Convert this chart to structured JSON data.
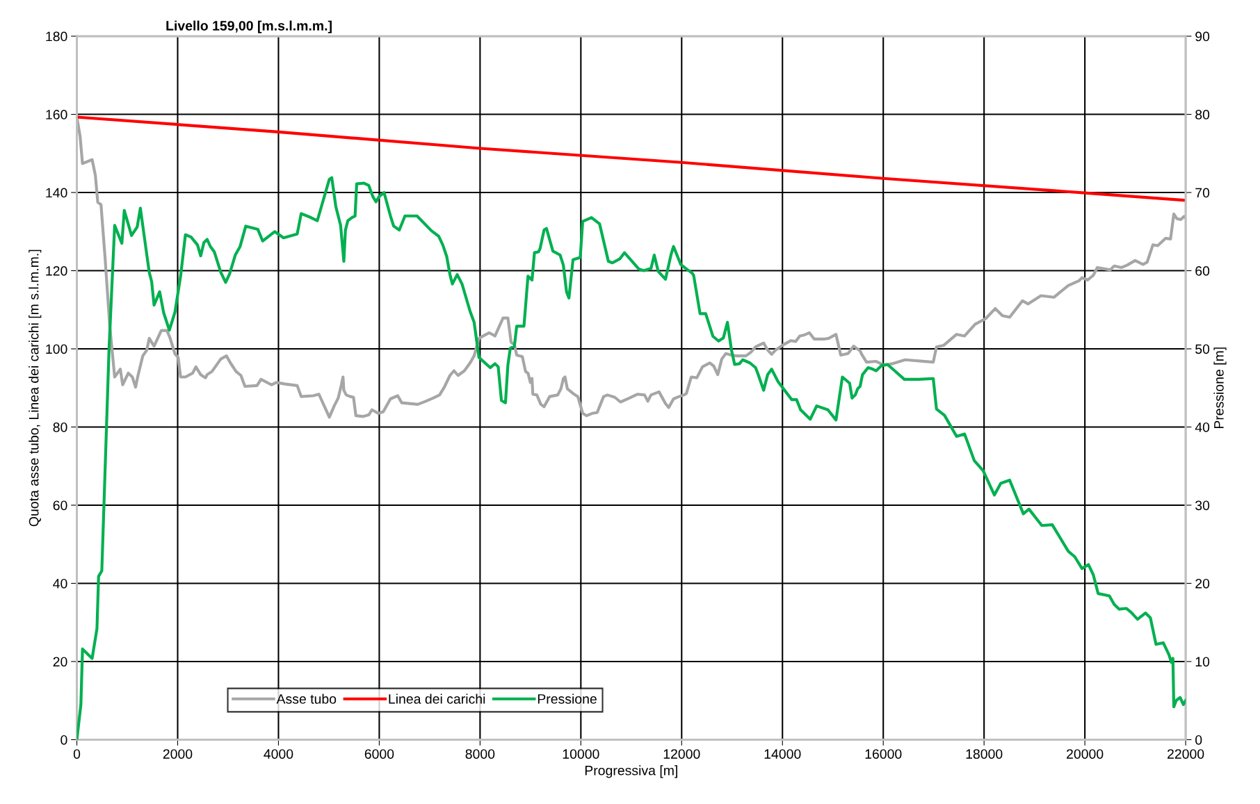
{
  "chart_data": {
    "type": "line",
    "title": "Livello 159,00 [m.s.l.m.m.]",
    "xlabel": "Progressiva [m]",
    "ylabel": "Quota asse tubo, Linea dei carichi [m s.l.m.m.]",
    "y2label": "Pressione [m]",
    "xlim": [
      0,
      22000
    ],
    "xticks": [
      0,
      2000,
      4000,
      6000,
      8000,
      10000,
      12000,
      14000,
      16000,
      18000,
      20000,
      22000
    ],
    "ylim": [
      0,
      180
    ],
    "yticks": [
      0,
      20,
      40,
      60,
      80,
      100,
      120,
      140,
      160,
      180
    ],
    "y2lim": [
      0,
      90
    ],
    "y2ticks": [
      0,
      10,
      20,
      30,
      40,
      50,
      60,
      70,
      80,
      90
    ],
    "grid": true,
    "legend": "bottom left",
    "line_style": "solid",
    "marker": "none",
    "series": [
      {
        "name": "Asse tubo",
        "color": "#a6a6a6",
        "x": [
          0,
          64,
          112,
          303,
          367,
          415,
          479,
          558,
          654,
          750,
          862,
          909,
          1021,
          1101,
          1165,
          1213,
          1308,
          1388,
          1436,
          1532,
          1675,
          1787,
          1851,
          1947,
          2010,
          2058,
          2154,
          2298,
          2361,
          2457,
          2553,
          2585,
          2680,
          2856,
          2968,
          3047,
          3159,
          3255,
          3335,
          3574,
          3654,
          3861,
          3957,
          4132,
          4372,
          4451,
          4691,
          4802,
          5010,
          5106,
          5185,
          5249,
          5281,
          5297,
          5345,
          5425,
          5489,
          5536,
          5680,
          5792,
          5855,
          5983,
          6079,
          6222,
          6366,
          6446,
          6765,
          6924,
          7068,
          7196,
          7291,
          7403,
          7483,
          7563,
          7690,
          7802,
          7882,
          7978,
          8121,
          8185,
          8297,
          8456,
          8552,
          8616,
          8680,
          8727,
          8839,
          8903,
          8951,
          8999,
          9031,
          9047,
          9127,
          9206,
          9270,
          9382,
          9541,
          9605,
          9653,
          9685,
          9732,
          9844,
          9940,
          10036,
          10115,
          10227,
          10323,
          10451,
          10530,
          10674,
          10786,
          10961,
          11121,
          11264,
          11328,
          11392,
          11551,
          11679,
          11743,
          11839,
          11950,
          12046,
          12094,
          12190,
          12301,
          12413,
          12557,
          12636,
          12716,
          12796,
          12876,
          12987,
          13083,
          13274,
          13370,
          13466,
          13626,
          13706,
          13785,
          13865,
          14025,
          14168,
          14264,
          14344,
          14423,
          14535,
          14631,
          14822,
          14918,
          15062,
          15157,
          15301,
          15413,
          15540,
          15572,
          15668,
          15859,
          16019,
          16178,
          16434,
          16992,
          17056,
          17200,
          17455,
          17614,
          17822,
          18029,
          18221,
          18364,
          18508,
          18763,
          18875,
          19130,
          19385,
          19672,
          19880,
          19943,
          20055,
          20167,
          20247,
          20502,
          20582,
          20726,
          20838,
          20997,
          21157,
          21237,
          21350,
          21446,
          21605,
          21700,
          21765,
          21826,
          21906,
          21970,
          22000
        ],
        "values": [
          159.3,
          154.4,
          147.4,
          148.4,
          144.4,
          137.5,
          136.9,
          123.6,
          105.7,
          92.8,
          94.8,
          90.8,
          93.8,
          92.8,
          90.2,
          93.2,
          98.2,
          99.7,
          102.7,
          100.7,
          104.7,
          104.7,
          102.7,
          98.7,
          97.8,
          92.8,
          92.8,
          93.8,
          95.4,
          93.4,
          92.6,
          93.4,
          94.2,
          97.4,
          98.2,
          96.4,
          94.2,
          93.2,
          90.4,
          90.6,
          92.2,
          90.8,
          91.4,
          91,
          90.6,
          87.8,
          88,
          88.4,
          82.5,
          85.4,
          87.4,
          90.8,
          92.8,
          89.4,
          88.2,
          87.8,
          87.6,
          82.9,
          82.7,
          83.1,
          84.4,
          83.5,
          83.9,
          87.2,
          88,
          86.2,
          85.8,
          86.6,
          87.4,
          88.2,
          90.2,
          93.2,
          94.4,
          93.2,
          94.4,
          96.4,
          98.2,
          102.7,
          103.7,
          104.1,
          103.3,
          107.9,
          107.9,
          101.7,
          101.1,
          98.4,
          98,
          94.2,
          93.8,
          91.4,
          92.4,
          88.4,
          88.2,
          85.8,
          85.2,
          87.8,
          88.2,
          89.8,
          92.4,
          92.8,
          89.8,
          88.6,
          87.8,
          83.5,
          82.9,
          83.5,
          83.7,
          87.8,
          88.2,
          87.6,
          86.4,
          87.4,
          88.4,
          88.2,
          86.6,
          88.2,
          89,
          86,
          85,
          87.2,
          87.8,
          88.2,
          88.6,
          92.8,
          92.6,
          95.4,
          96.4,
          95.6,
          93.4,
          97.4,
          98.8,
          98.4,
          98.2,
          98.2,
          99.1,
          100.5,
          101.5,
          99.7,
          98.6,
          99.7,
          101.1,
          102.1,
          101.9,
          103.3,
          103.5,
          104.1,
          102.5,
          102.5,
          102.7,
          103.7,
          98.4,
          98.8,
          100.7,
          99.5,
          98.6,
          96.6,
          96.8,
          95.8,
          96.2,
          97.2,
          96.6,
          100.5,
          100.9,
          103.7,
          103.3,
          106.3,
          107.7,
          110.3,
          108.5,
          108.1,
          112.3,
          111.5,
          113.6,
          113.2,
          116.2,
          117.4,
          118.2,
          117.6,
          118.8,
          120.8,
          120.2,
          121.2,
          120.8,
          121.4,
          122.6,
          121.6,
          122.2,
          126.6,
          126.4,
          128.3,
          128.1,
          134.5,
          133.3,
          133.1,
          133.9,
          133.5
        ]
      },
      {
        "name": "Linea dei carichi",
        "color": "#ff0000",
        "x": [
          0,
          4000,
          8000,
          12000,
          16000,
          20000,
          22000
        ],
        "values": [
          159.3,
          155.5,
          151.3,
          147.7,
          143.6,
          139.9,
          138.0
        ]
      },
      {
        "name": "Pressione",
        "color": "#00b050",
        "axis": "y2",
        "x": [
          0,
          80,
          112,
          303,
          399,
          431,
          495,
          638,
          750,
          893,
          941,
          1085,
          1197,
          1260,
          1324,
          1436,
          1484,
          1532,
          1643,
          1723,
          1835,
          1947,
          2058,
          2154,
          2266,
          2393,
          2457,
          2521,
          2585,
          2649,
          2728,
          2856,
          2952,
          3031,
          3143,
          3239,
          3351,
          3590,
          3686,
          3925,
          4100,
          4372,
          4451,
          4643,
          4771,
          5010,
          5058,
          5138,
          5233,
          5297,
          5329,
          5377,
          5457,
          5520,
          5552,
          5696,
          5792,
          5871,
          5935,
          5999,
          6095,
          6222,
          6286,
          6398,
          6510,
          6749,
          7036,
          7180,
          7260,
          7339,
          7403,
          7451,
          7547,
          7642,
          7802,
          7882,
          7978,
          8201,
          8297,
          8360,
          8424,
          8504,
          8552,
          8600,
          8680,
          8727,
          8871,
          8951,
          9031,
          9079,
          9158,
          9190,
          9270,
          9318,
          9445,
          9589,
          9653,
          9716,
          9764,
          9844,
          9988,
          10036,
          10211,
          10371,
          10546,
          10626,
          10770,
          10865,
          11153,
          11248,
          11392,
          11456,
          11536,
          11679,
          11791,
          11839,
          11982,
          12078,
          12206,
          12238,
          12365,
          12477,
          12621,
          12732,
          12828,
          12908,
          12987,
          13051,
          13147,
          13211,
          13354,
          13466,
          13514,
          13626,
          13706,
          13785,
          13913,
          14184,
          14280,
          14360,
          14551,
          14679,
          14902,
          15062,
          15189,
          15333,
          15381,
          15444,
          15492,
          15540,
          15588,
          15700,
          15795,
          15859,
          15971,
          16083,
          16226,
          16418,
          16705,
          16992,
          17056,
          17215,
          17455,
          17614,
          17806,
          17982,
          18205,
          18332,
          18508,
          18780,
          18891,
          19146,
          19353,
          19672,
          19800,
          19943,
          20071,
          20167,
          20215,
          20263,
          20486,
          20582,
          20678,
          20821,
          20917,
          21045,
          21204,
          21300,
          21412,
          21555,
          21667,
          21716,
          21747,
          21765,
          21811,
          21890,
          21954,
          22000
        ],
        "values": [
          0,
          4.5,
          11.6,
          10.4,
          14.2,
          20.9,
          21.6,
          49.9,
          65.8,
          63.5,
          67.7,
          64.5,
          65.6,
          68,
          65,
          59.8,
          58.6,
          55.6,
          57.3,
          54.6,
          52.4,
          54.7,
          59.3,
          64.6,
          64.3,
          63.3,
          61.9,
          63.6,
          64,
          63.1,
          62.4,
          59.8,
          58.5,
          59.6,
          62,
          63.1,
          65.7,
          65.3,
          63.8,
          65,
          64.2,
          64.7,
          67.3,
          66.8,
          66.4,
          71.7,
          71.9,
          68.2,
          65.8,
          61.2,
          65.2,
          66.4,
          66.8,
          67,
          71.1,
          71.2,
          70.9,
          69.5,
          68.8,
          69.5,
          70,
          67,
          65.7,
          65.2,
          67,
          67,
          65.1,
          64.4,
          63.3,
          61.8,
          59.5,
          58.3,
          59.5,
          58.3,
          54.8,
          53.4,
          48.9,
          47.6,
          48.1,
          47.7,
          43.4,
          43.1,
          47.9,
          50.1,
          50.3,
          52.9,
          52.9,
          59.3,
          58.8,
          62.3,
          62.4,
          62.8,
          65.2,
          65.4,
          62.5,
          62,
          60.7,
          57.3,
          56.5,
          61.4,
          61.7,
          66.3,
          66.8,
          66,
          61.2,
          61,
          61.5,
          62.3,
          60.2,
          60,
          60.3,
          62,
          59.9,
          58.9,
          62.1,
          63.1,
          60.8,
          60.3,
          59.7,
          59.4,
          54.5,
          54.5,
          51.6,
          51,
          51.4,
          53.4,
          49.9,
          48,
          48.1,
          48.6,
          48.2,
          47.6,
          46.8,
          44.7,
          46.7,
          47.4,
          45.8,
          43.5,
          43.5,
          42.2,
          41,
          42.7,
          42.2,
          40.9,
          46.4,
          45.6,
          43.7,
          44.1,
          44.9,
          45.2,
          46.7,
          47.6,
          47.4,
          47.2,
          47.9,
          48,
          47.2,
          46.1,
          46.1,
          46.2,
          42.3,
          41.5,
          38.8,
          39.1,
          35.7,
          34.4,
          31.3,
          32.8,
          33.2,
          28.9,
          29.5,
          27.4,
          27.5,
          24.1,
          23.4,
          21.9,
          22.4,
          21.1,
          19.9,
          18.7,
          18.4,
          17.3,
          16.7,
          16.8,
          16.3,
          15.4,
          16.2,
          15.6,
          12.2,
          12.4,
          10.9,
          9.9,
          10.4,
          4.2,
          5.0,
          5.4,
          4.5,
          5.0
        ]
      }
    ]
  }
}
